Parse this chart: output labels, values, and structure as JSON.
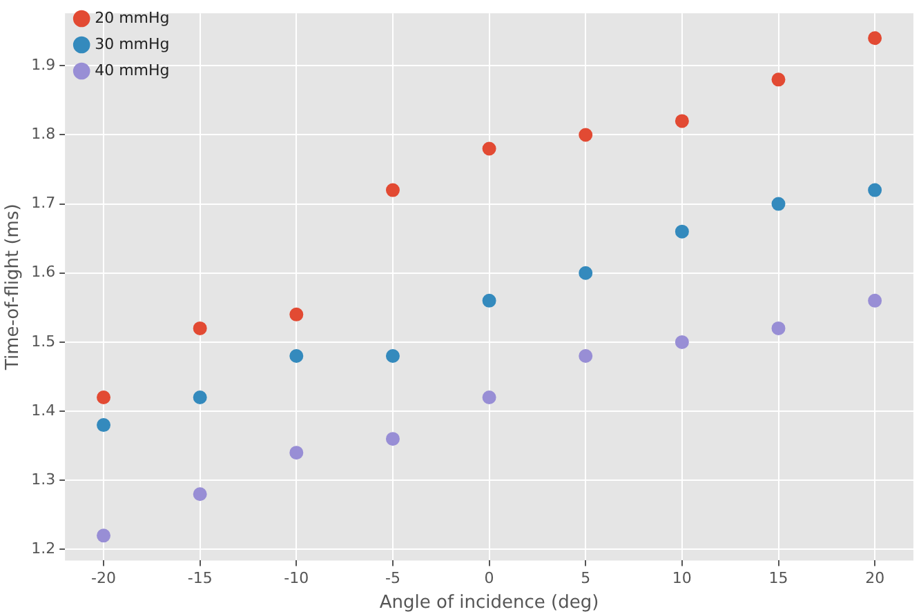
{
  "chart_data": {
    "type": "scatter",
    "xlabel": "Angle of incidence (deg)",
    "ylabel": "Time-of-flight (ms)",
    "x": [
      -20,
      -15,
      -10,
      -5,
      0,
      5,
      10,
      15,
      20
    ],
    "series": [
      {
        "name": "20 mmHg",
        "color": "#e24a33",
        "values": [
          1.42,
          1.52,
          1.54,
          1.72,
          1.78,
          1.8,
          1.82,
          1.88,
          1.94
        ]
      },
      {
        "name": "30 mmHg",
        "color": "#348abd",
        "values": [
          1.38,
          1.42,
          1.48,
          1.48,
          1.56,
          1.6,
          1.66,
          1.7,
          1.72
        ]
      },
      {
        "name": "40 mmHg",
        "color": "#988ed5",
        "values": [
          1.22,
          1.28,
          1.34,
          1.36,
          1.42,
          1.48,
          1.5,
          1.52,
          1.56
        ]
      }
    ],
    "xlim": [
      -22,
      22
    ],
    "xticks": [
      -20,
      -15,
      -10,
      -5,
      0,
      5,
      10,
      15,
      20
    ],
    "ylim": [
      1.184,
      1.976
    ],
    "yticks": [
      1.2,
      1.3,
      1.4,
      1.5,
      1.6,
      1.7,
      1.8,
      1.9
    ],
    "grid": true,
    "legend": "top left",
    "marker": "circle"
  }
}
